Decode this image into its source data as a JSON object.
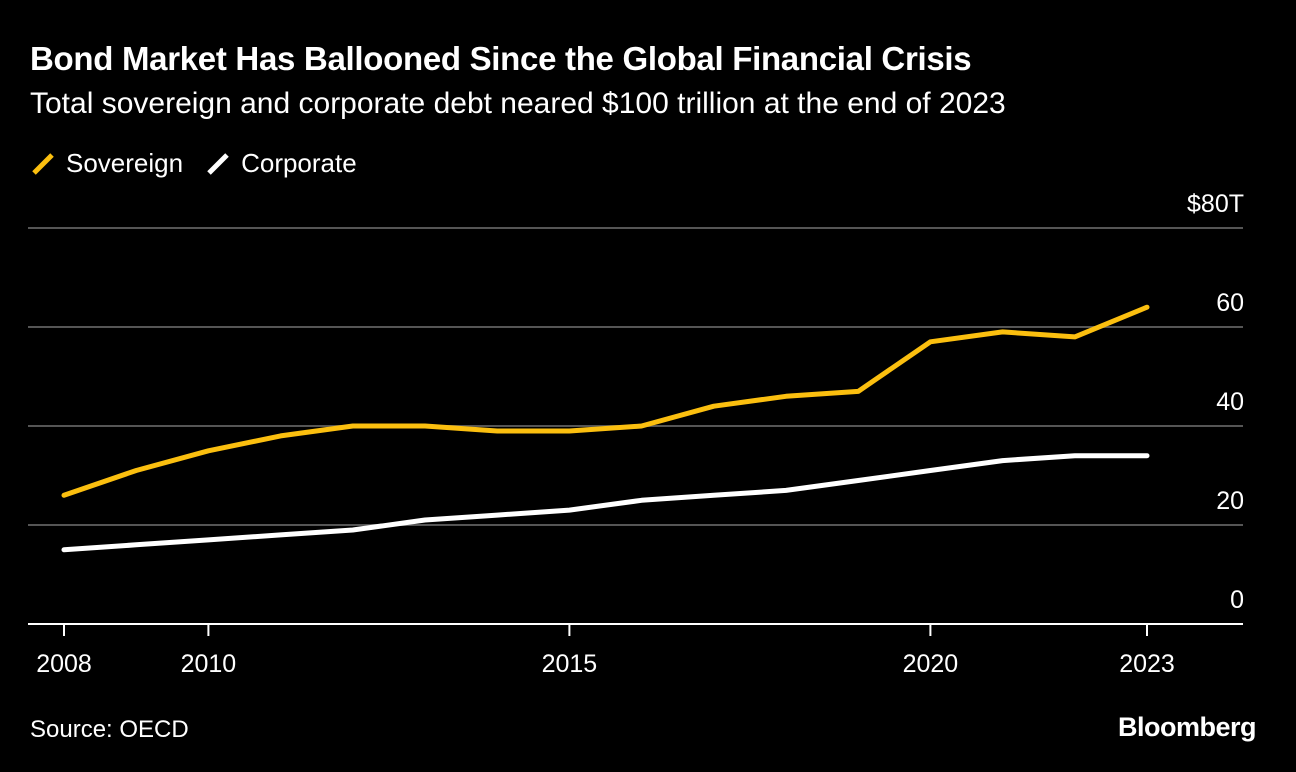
{
  "header": {
    "title": "Bond Market Has Ballooned Since the Global Financial Crisis",
    "subtitle": "Total sovereign and corporate debt neared $100 trillion at the end of 2023"
  },
  "footer": {
    "source": "Source: OECD",
    "logo": "Bloomberg"
  },
  "colors": {
    "background": "#000000",
    "sovereign": "#fbbf0f",
    "corporate": "#ffffff",
    "gridline": "#555555",
    "axis": "#ffffff"
  },
  "chart_data": {
    "type": "line",
    "title": "Bond Market Has Ballooned Since the Global Financial Crisis",
    "subtitle": "Total sovereign and corporate debt neared $100 trillion at the end of 2023",
    "xlabel": "",
    "ylabel": "",
    "x": [
      2008,
      2009,
      2010,
      2011,
      2012,
      2013,
      2014,
      2015,
      2016,
      2017,
      2018,
      2019,
      2020,
      2021,
      2022,
      2023
    ],
    "xlim": [
      2007.5,
      2024.3
    ],
    "ylim": [
      0,
      80
    ],
    "x_ticks": [
      2008,
      2010,
      2015,
      2020,
      2023
    ],
    "x_tick_labels": [
      "2008",
      "2010",
      "2015",
      "2020",
      "2023"
    ],
    "y_ticks": [
      0,
      20,
      40,
      60,
      80
    ],
    "y_tick_labels": [
      "0",
      "20",
      "40",
      "60",
      "$80T"
    ],
    "grid": true,
    "legend_position": "top-left",
    "series": [
      {
        "name": "Sovereign",
        "color": "#fbbf0f",
        "values": [
          26,
          31,
          35,
          38,
          40,
          40,
          39,
          39,
          40,
          44,
          46,
          47,
          57,
          59,
          58,
          64
        ]
      },
      {
        "name": "Corporate",
        "color": "#ffffff",
        "values": [
          15,
          16,
          17,
          18,
          19,
          21,
          22,
          23,
          25,
          26,
          27,
          29,
          31,
          33,
          34,
          34
        ]
      }
    ]
  }
}
